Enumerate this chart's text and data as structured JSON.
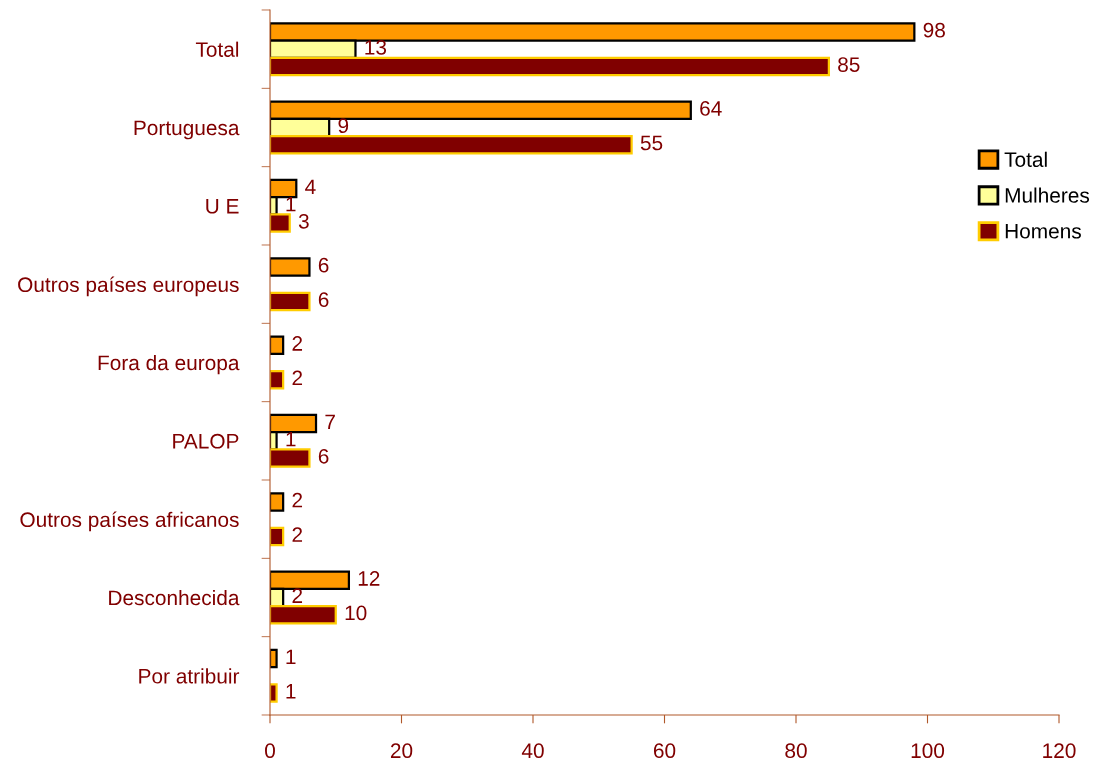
{
  "chart_data": {
    "type": "bar",
    "orientation": "horizontal",
    "categories": [
      "Total",
      "Portuguesa",
      "U E",
      "Outros países europeus",
      "Fora da europa",
      "PALOP",
      "Outros países africanos",
      "Desconhecida",
      "Por atribuir"
    ],
    "series": [
      {
        "name": "Total",
        "color": "#ff9900",
        "values": [
          98,
          64,
          4,
          6,
          2,
          7,
          2,
          12,
          1
        ]
      },
      {
        "name": "Mulheres",
        "color": "#ffff99",
        "values": [
          13,
          9,
          1,
          null,
          null,
          1,
          null,
          2,
          null
        ]
      },
      {
        "name": "Homens",
        "color": "#800000",
        "values": [
          85,
          55,
          3,
          6,
          2,
          6,
          2,
          10,
          1
        ]
      }
    ],
    "xlim": [
      0,
      120
    ],
    "xticks": [
      0,
      20,
      40,
      60,
      80,
      100,
      120
    ],
    "data_labels": true,
    "legend": "right"
  }
}
